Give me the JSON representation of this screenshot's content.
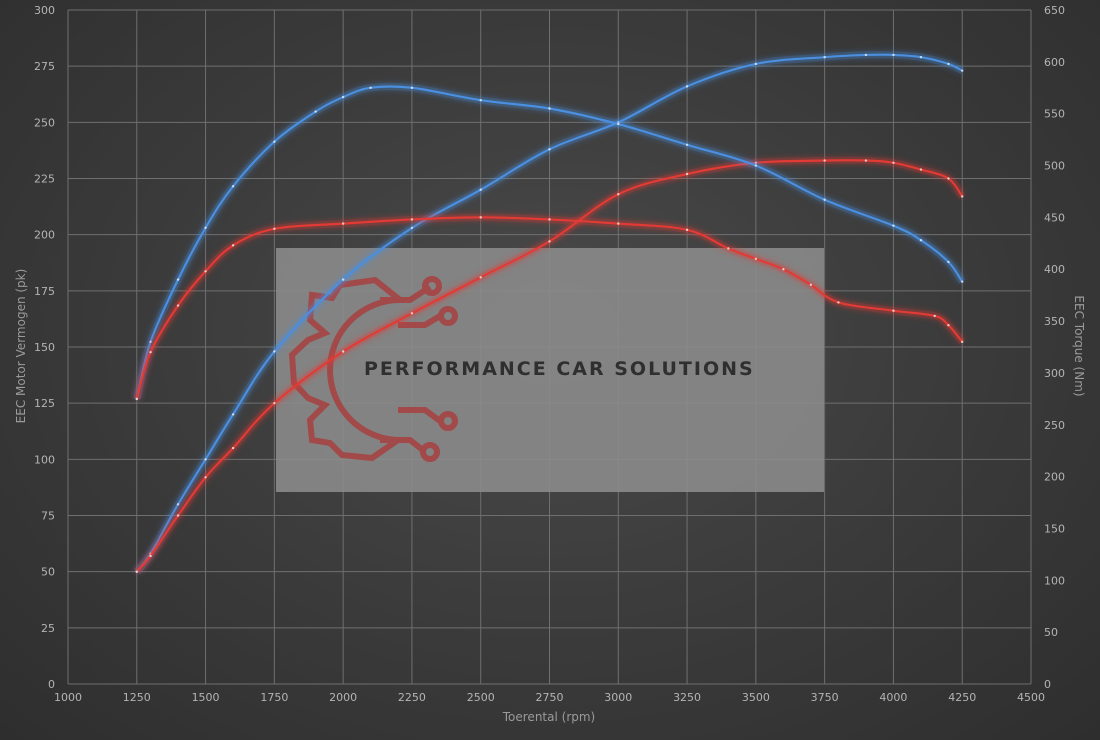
{
  "watermark": {
    "text": "PERFORMANCE CAR SOLUTIONS",
    "icon": "gear-circuit-logo-icon"
  },
  "colors": {
    "background": "#3a3a3a",
    "grid": "#6f6f6f",
    "tuned": "#4a8fe0",
    "stock": "#e23a35",
    "watermark_box": "#8c8c8c",
    "logo": "#a84040"
  },
  "chart_data": {
    "type": "line",
    "title": "",
    "xlabel": "Toerental (rpm)",
    "ylabel_left": "EEC Motor Vermogen (pk)",
    "ylabel_right": "EEC Torque (Nm)",
    "xlim": [
      1000,
      4500
    ],
    "ylim_left": [
      0,
      300
    ],
    "ylim_right": [
      0,
      650
    ],
    "x_ticks": [
      1000,
      1250,
      1500,
      1750,
      2000,
      2250,
      2500,
      2750,
      3000,
      3250,
      3500,
      3750,
      4000,
      4250,
      4500
    ],
    "y_left_ticks": [
      0,
      25,
      50,
      75,
      100,
      125,
      150,
      175,
      200,
      225,
      250,
      275,
      300
    ],
    "y_right_ticks": [
      0,
      50,
      100,
      150,
      200,
      250,
      300,
      350,
      400,
      450,
      500,
      550,
      600,
      650
    ],
    "grid": true,
    "legend": "none",
    "series": [
      {
        "axis": "left",
        "color": "#4a8fe0",
        "x": [
          1250,
          1300,
          1400,
          1500,
          1600,
          1750,
          2000,
          2250,
          2500,
          2750,
          3000,
          3250,
          3500,
          3750,
          3900,
          4000,
          4100,
          4200,
          4250
        ],
        "values": [
          50,
          58,
          80,
          100,
          120,
          148,
          180,
          203,
          220,
          238,
          250,
          266,
          276,
          279,
          280,
          280,
          279,
          276,
          273
        ]
      },
      {
        "axis": "left",
        "color": "#e23a35",
        "x": [
          1250,
          1300,
          1400,
          1500,
          1600,
          1750,
          2000,
          2250,
          2500,
          2750,
          3000,
          3250,
          3500,
          3750,
          3900,
          4000,
          4100,
          4200,
          4250
        ],
        "values": [
          50,
          57,
          75,
          92,
          105,
          125,
          148,
          165,
          181,
          197,
          218,
          227,
          232,
          233,
          233,
          232,
          229,
          225,
          217
        ]
      },
      {
        "axis": "right",
        "color": "#4a8fe0",
        "x": [
          1250,
          1300,
          1400,
          1500,
          1600,
          1750,
          1900,
          2000,
          2100,
          2250,
          2500,
          2750,
          3000,
          3250,
          3500,
          3750,
          4000,
          4100,
          4200,
          4250
        ],
        "values": [
          275,
          330,
          390,
          440,
          480,
          523,
          552,
          566,
          575,
          575,
          563,
          555,
          540,
          520,
          500,
          467,
          442,
          428,
          407,
          388
        ]
      },
      {
        "axis": "right",
        "color": "#e23a35",
        "x": [
          1250,
          1300,
          1400,
          1500,
          1600,
          1750,
          2000,
          2250,
          2500,
          2750,
          3000,
          3250,
          3400,
          3500,
          3600,
          3700,
          3800,
          4000,
          4150,
          4200,
          4250
        ],
        "values": [
          275,
          320,
          365,
          398,
          423,
          439,
          444,
          448,
          450,
          448,
          444,
          438,
          420,
          410,
          400,
          385,
          368,
          360,
          355,
          346,
          330
        ]
      }
    ]
  }
}
